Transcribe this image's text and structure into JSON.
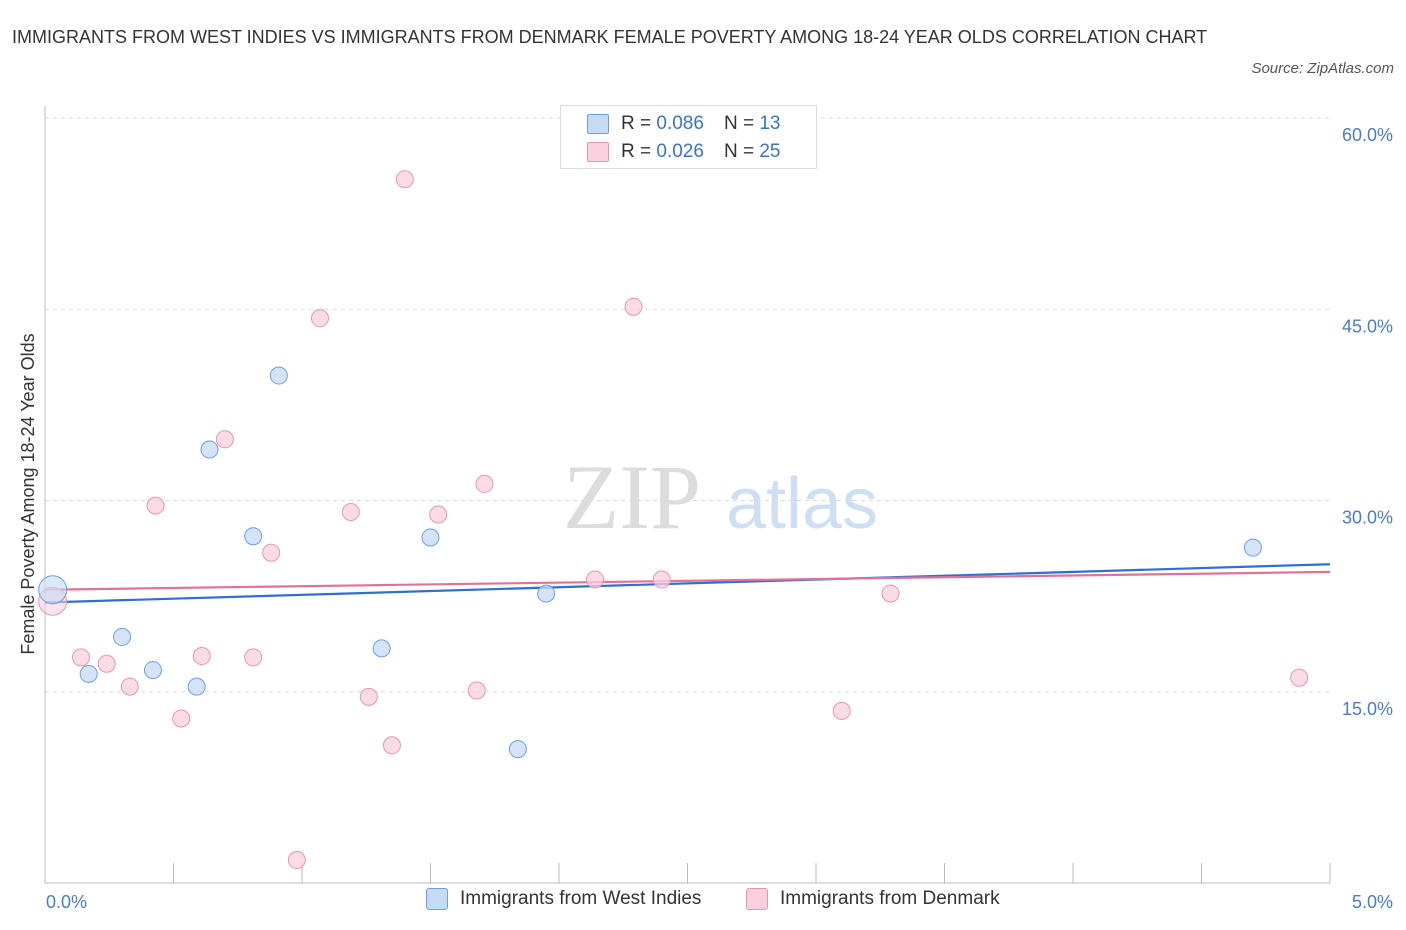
{
  "chart_data": {
    "type": "scatter",
    "title": "IMMIGRANTS FROM WEST INDIES VS IMMIGRANTS FROM DENMARK FEMALE POVERTY AMONG 18-24 YEAR OLDS CORRELATION CHART",
    "source": "Source: ZipAtlas.com",
    "xlabel": "",
    "ylabel": "Female Poverty Among 18-24 Year Olds",
    "xlim": [
      0,
      5
    ],
    "ylim": [
      0,
      60
    ],
    "x_tick_labels": {
      "min": "0.0%",
      "max": "5.0%"
    },
    "y_ticks": [
      {
        "value": 15,
        "label": "15.0%"
      },
      {
        "value": 30,
        "label": "30.0%"
      },
      {
        "value": 45,
        "label": "45.0%"
      },
      {
        "value": 60,
        "label": "60.0%"
      }
    ],
    "watermark": {
      "part1": "ZIP",
      "part2": "atlas"
    },
    "series": [
      {
        "name": "Immigrants from West Indies",
        "color": "#6f9fe0",
        "fill": "#c5daf5",
        "line_color": "#2f6fcf",
        "r_label": "R = ",
        "r_value": "0.086",
        "n_label": "N = ",
        "n_value": "13",
        "trend": {
          "x0": 0,
          "y0": 22.0,
          "x1": 5,
          "y1": 25.0
        },
        "points": [
          {
            "x": 0.03,
            "y": 23.0,
            "big": true
          },
          {
            "x": 0.17,
            "y": 16.4
          },
          {
            "x": 0.3,
            "y": 19.3
          },
          {
            "x": 0.42,
            "y": 16.7
          },
          {
            "x": 0.59,
            "y": 15.4
          },
          {
            "x": 0.64,
            "y": 34.0
          },
          {
            "x": 0.81,
            "y": 27.2
          },
          {
            "x": 0.91,
            "y": 39.8
          },
          {
            "x": 1.31,
            "y": 18.4
          },
          {
            "x": 1.5,
            "y": 27.1
          },
          {
            "x": 1.84,
            "y": 10.5
          },
          {
            "x": 1.95,
            "y": 22.7
          },
          {
            "x": 4.7,
            "y": 26.3
          }
        ]
      },
      {
        "name": "Immigrants from Denmark",
        "color": "#e895b0",
        "fill": "#fad0de",
        "line_color": "#e0729a",
        "r_label": "R = ",
        "r_value": "0.026",
        "n_label": "N = ",
        "n_value": "25",
        "trend": {
          "x0": 0,
          "y0": 23.0,
          "x1": 5,
          "y1": 24.4
        },
        "points": [
          {
            "x": 0.03,
            "y": 22.1,
            "big": true
          },
          {
            "x": 0.14,
            "y": 17.7
          },
          {
            "x": 0.24,
            "y": 17.2
          },
          {
            "x": 0.33,
            "y": 15.4
          },
          {
            "x": 0.43,
            "y": 29.6
          },
          {
            "x": 0.53,
            "y": 12.9
          },
          {
            "x": 0.61,
            "y": 17.8
          },
          {
            "x": 0.7,
            "y": 34.8
          },
          {
            "x": 0.81,
            "y": 17.7
          },
          {
            "x": 0.88,
            "y": 25.9
          },
          {
            "x": 0.98,
            "y": 1.8
          },
          {
            "x": 1.07,
            "y": 44.3
          },
          {
            "x": 1.19,
            "y": 29.1
          },
          {
            "x": 1.26,
            "y": 14.6
          },
          {
            "x": 1.35,
            "y": 10.8
          },
          {
            "x": 1.4,
            "y": 55.2
          },
          {
            "x": 1.53,
            "y": 28.9
          },
          {
            "x": 1.68,
            "y": 15.1
          },
          {
            "x": 1.71,
            "y": 31.3
          },
          {
            "x": 2.14,
            "y": 23.8
          },
          {
            "x": 2.29,
            "y": 45.2
          },
          {
            "x": 2.4,
            "y": 23.8
          },
          {
            "x": 3.1,
            "y": 13.5
          },
          {
            "x": 3.29,
            "y": 22.7
          },
          {
            "x": 4.88,
            "y": 16.1
          }
        ]
      }
    ]
  }
}
